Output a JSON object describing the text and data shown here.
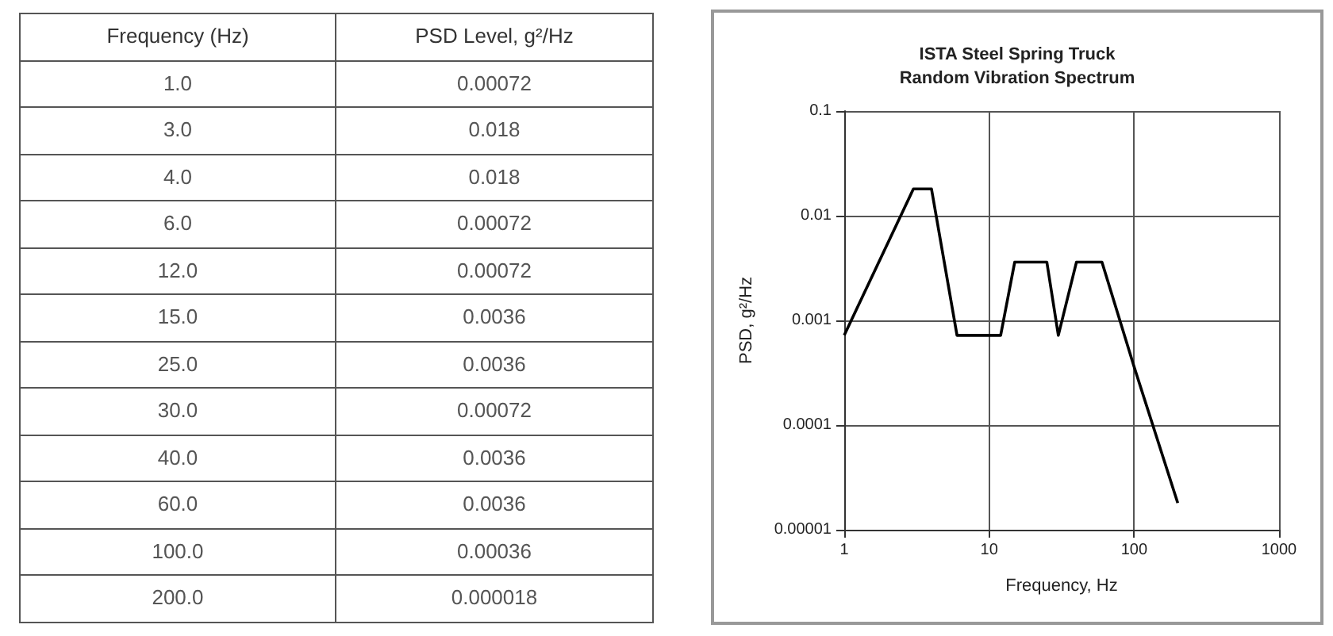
{
  "chart_data": [
    {
      "type": "other",
      "annotations": [
        "Frequency (Hz)",
        "PSD Level, g²/Hz",
        "1.0",
        "0.00072",
        "3.0",
        "0.018",
        "4.0",
        "0.018",
        "6.0",
        "0.00072",
        "12.0",
        "0.00072",
        "15.0",
        "0.0036",
        "25.0",
        "0.0036",
        "30.0",
        "0.00072",
        "40.0",
        "0.0036",
        "60.0",
        "0.0036",
        "100.0",
        "0.00036",
        "200.0",
        "0.000018"
      ]
    },
    {
      "type": "line",
      "title": "ISTA Steel Spring Truck\nRandom Vibration Spectrum",
      "xlabel": "Frequency, Hz",
      "ylabel": "PSD, g²/Hz",
      "x": [
        1,
        3,
        4,
        6,
        12,
        15,
        25,
        30,
        40,
        60,
        100,
        200
      ],
      "series": [
        {
          "color": "#000000",
          "values": [
            0.00072,
            0.018,
            0.018,
            0.00072,
            0.00072,
            0.0036,
            0.0036,
            0.00072,
            0.0036,
            0.0036,
            0.00036,
            1.8e-05
          ]
        }
      ],
      "log": "xy",
      "xlim": [
        1,
        1000
      ],
      "xticks": [
        1,
        10,
        100,
        1000
      ],
      "ylim": [
        1e-05,
        0.1
      ],
      "yticks": [
        {
          "value": 1e-05,
          "label": "0.00001"
        },
        0.0001,
        0.001,
        0.01,
        0.1
      ],
      "grid": true,
      "marker": "none",
      "line_style": "solid"
    }
  ]
}
